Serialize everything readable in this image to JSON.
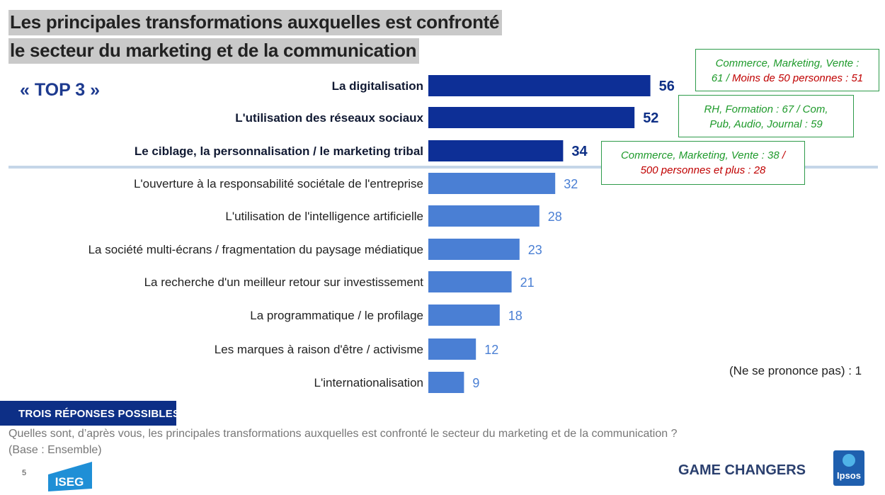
{
  "title": {
    "line1": "Les principales transformations auxquelles est confronté",
    "line2": "le secteur du marketing et de la communication"
  },
  "top3_label": "« TOP 3 »",
  "colors": {
    "top3_bar": "#0d2f96",
    "other_bar": "#4a7fd4",
    "top3_value": "#0d2f86",
    "other_value": "#4a7fd4",
    "callout_border": "#2e9b4a",
    "callout_green": "#1e9a2b",
    "callout_red": "#c00000",
    "banner": "#0d2f86"
  },
  "chart_data": {
    "type": "bar",
    "orientation": "horizontal",
    "categories": [
      "La digitalisation",
      "L'utilisation des réseaux sociaux",
      "Le ciblage, la personnalisation / le marketing tribal",
      "L'ouverture à la responsabilité sociétale de l'entreprise",
      "L'utilisation de l'intelligence artificielle",
      "La société multi-écrans / fragmentation du paysage médiatique",
      "La recherche d'un meilleur retour sur investissement",
      "La programmatique / le profilage",
      "Les marques à raison d'être / activisme",
      "L'internationalisation"
    ],
    "values": [
      56,
      52,
      34,
      32,
      28,
      23,
      21,
      18,
      12,
      9
    ],
    "highlight_top": 3,
    "grid": false,
    "legend": "none"
  },
  "callouts": [
    {
      "parts": [
        {
          "text": "Commerce, Marketing, Vente :",
          "color": "green",
          "br": true
        },
        {
          "text": "61 / ",
          "color": "green",
          "br": false
        },
        {
          "text": "Moins de 50 personnes : 51",
          "color": "red",
          "br": false
        }
      ]
    },
    {
      "parts": [
        {
          "text": "RH, Formation :  67 / Com,",
          "color": "green",
          "br": true
        },
        {
          "text": "Pub, Audio, Journal : 59",
          "color": "green",
          "br": false
        }
      ]
    },
    {
      "parts": [
        {
          "text": "Commerce, Marketing, Vente : 38 ",
          "color": "green",
          "br": false
        },
        {
          "text": "/",
          "color": "red",
          "br": true
        },
        {
          "text": "500 personnes et plus : 28",
          "color": "red",
          "br": false
        }
      ]
    }
  ],
  "no_answer": "(Ne se prononce pas) : 1",
  "footer": {
    "banner": "TROIS RÉPONSES POSSIBLES",
    "question": "Quelles sont, d’après vous, les principales transformations auxquelles est confronté le secteur du marketing et de la communication ?",
    "base": "(Base : Ensemble)",
    "page_number": "5",
    "iseg_logo_text": "ISEG",
    "game_changers": "GAME CHANGERS",
    "ipsos_logo_text": "Ipsos"
  }
}
